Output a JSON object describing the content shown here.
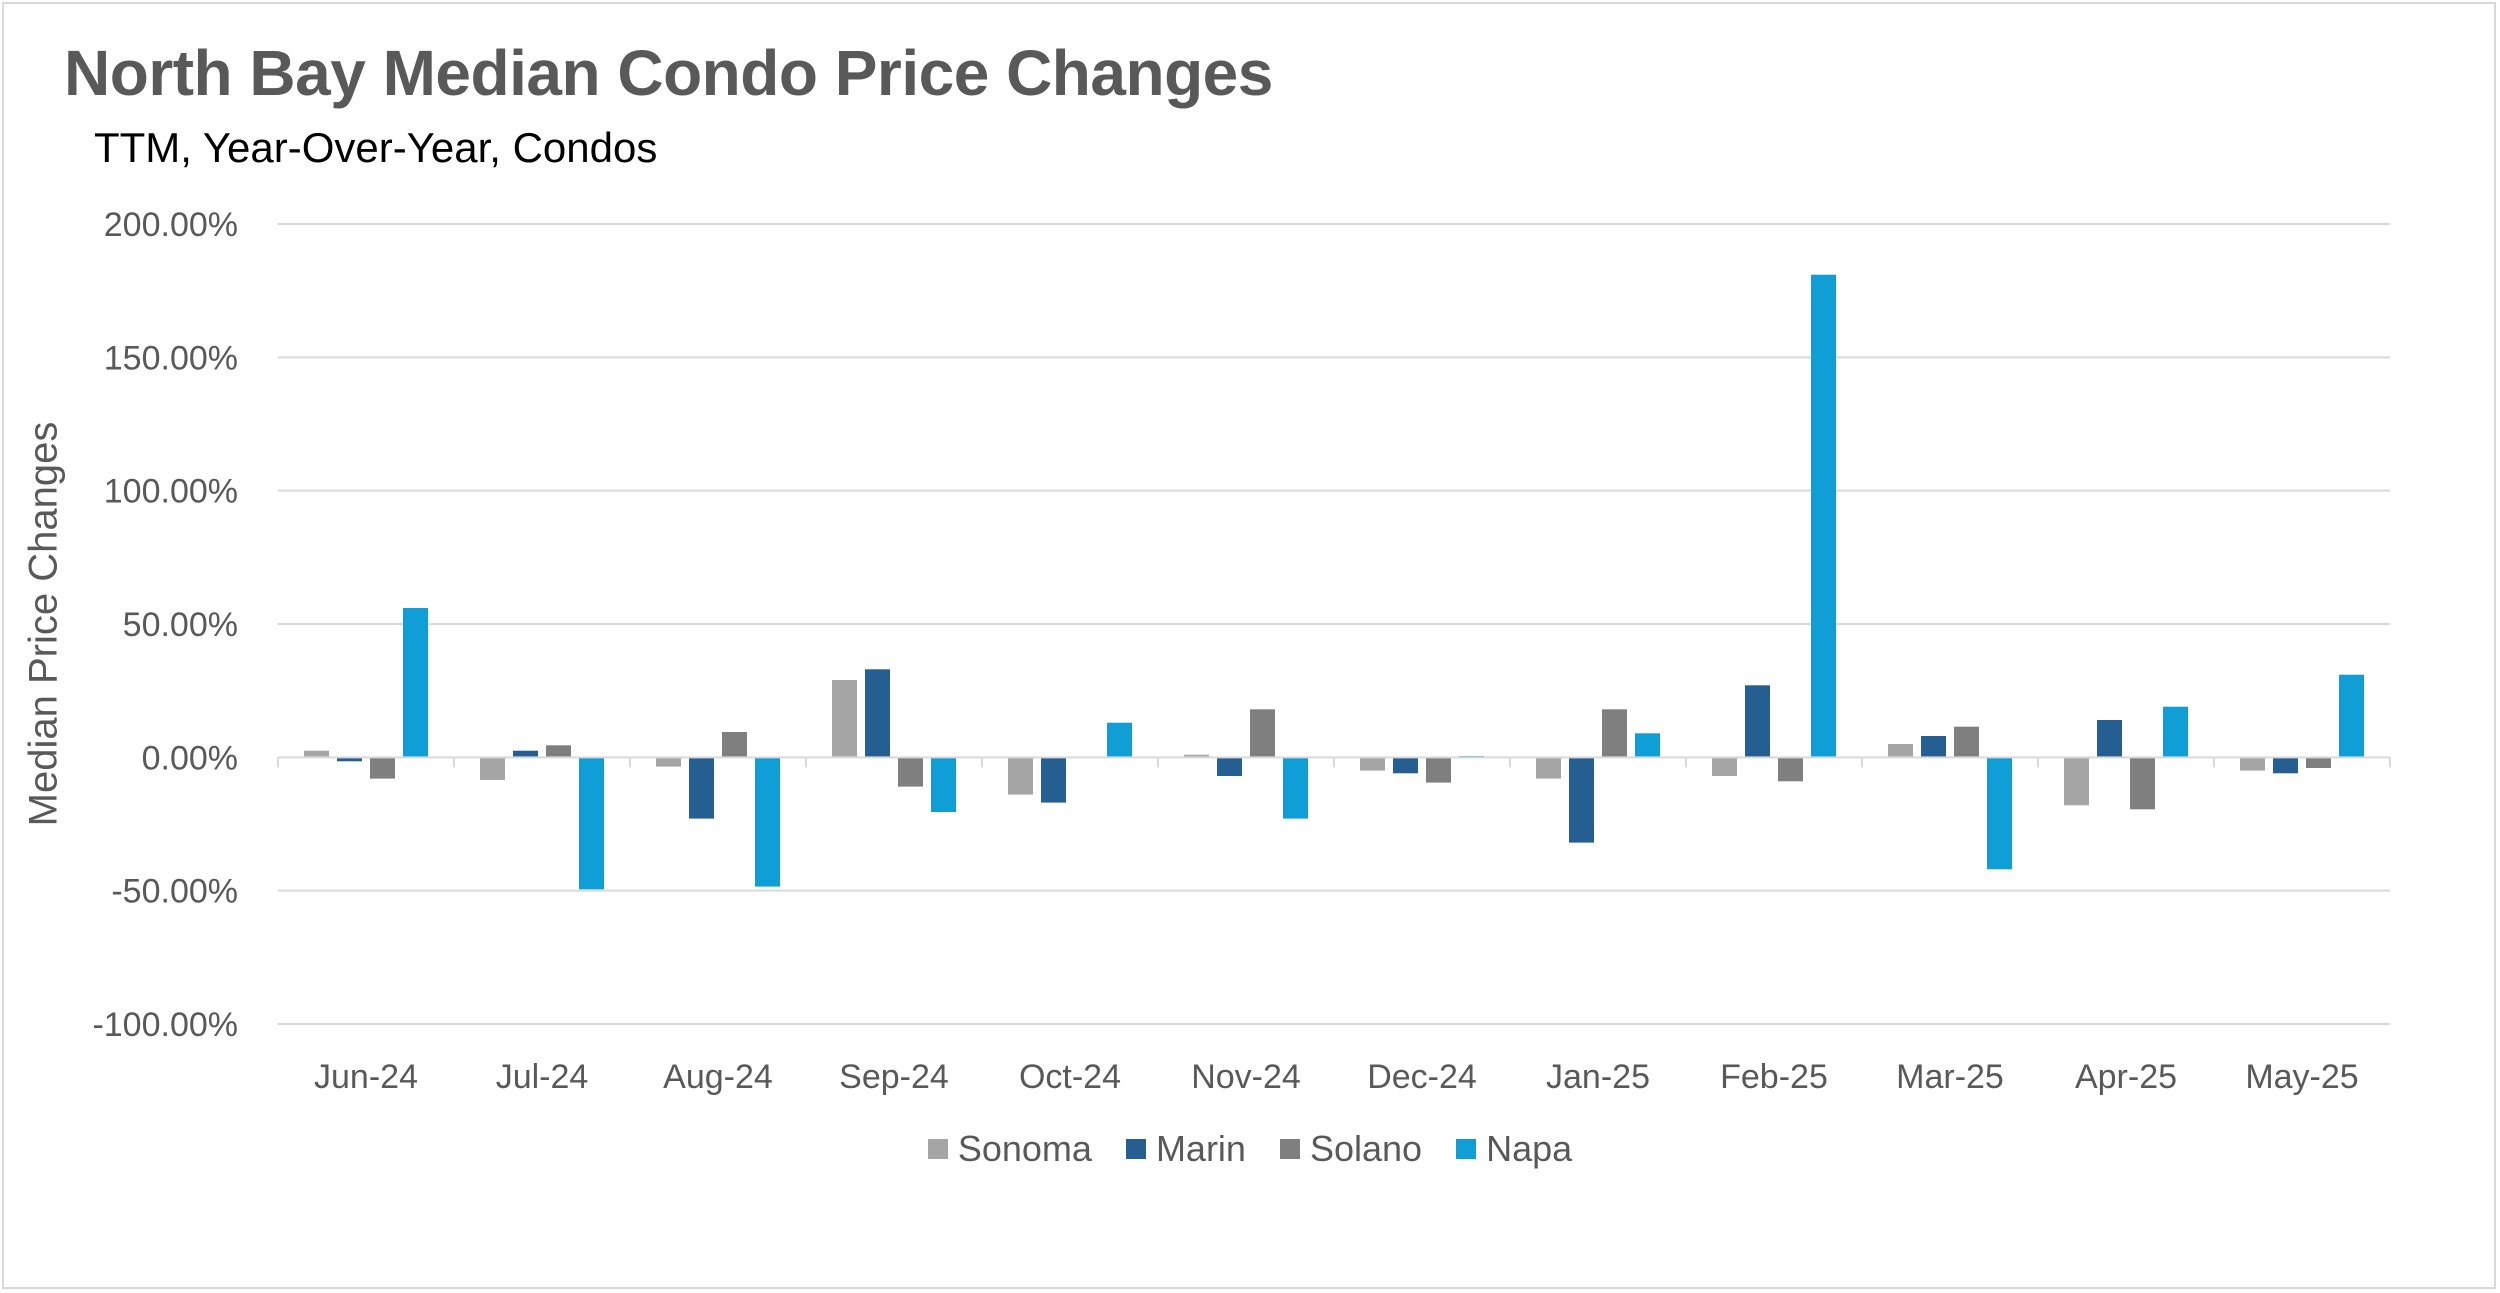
{
  "chart_data": {
    "type": "bar",
    "title": "North Bay Median Condo Price Changes",
    "subtitle": "TTM, Year-Over-Year,  Condos",
    "xlabel": "",
    "ylabel": "Median Price Changes",
    "ylim": [
      -100,
      200
    ],
    "yticks": [
      200,
      150,
      100,
      50,
      0,
      -50,
      -100
    ],
    "ytick_labels": [
      "200.00%",
      "150.00%",
      "100.00%",
      "50.00%",
      "0.00%",
      "-50.00%",
      "-100.00%"
    ],
    "grid": true,
    "legend_position": "bottom",
    "categories": [
      "Jun-24",
      "Jul-24",
      "Aug-24",
      "Sep-24",
      "Oct-24",
      "Nov-24",
      "Dec-24",
      "Jan-25",
      "Feb-25",
      "Mar-25",
      "Apr-25",
      "May-25"
    ],
    "series": [
      {
        "name": "Sonoma",
        "color": "#a5a5a5",
        "values": [
          2.5,
          -8.5,
          -3.5,
          29,
          -14,
          1,
          -5,
          -8,
          -7,
          5,
          -18,
          -5
        ]
      },
      {
        "name": "Marin",
        "color": "#255e91",
        "values": [
          -1.5,
          2.5,
          -23,
          33,
          -17,
          -7,
          -6,
          -32,
          27,
          8,
          14,
          -6
        ]
      },
      {
        "name": "Solano",
        "color": "#7f7f7f",
        "values": [
          -8,
          4.5,
          9.5,
          -11,
          0,
          18,
          -9.5,
          18,
          -9,
          11.5,
          -19.5,
          -4
        ]
      },
      {
        "name": "Napa",
        "color": "#0f9ed5",
        "values": [
          56,
          -49.5,
          -48.5,
          -20.5,
          13,
          -23,
          0.5,
          9,
          181,
          -42,
          19,
          31
        ]
      }
    ]
  }
}
